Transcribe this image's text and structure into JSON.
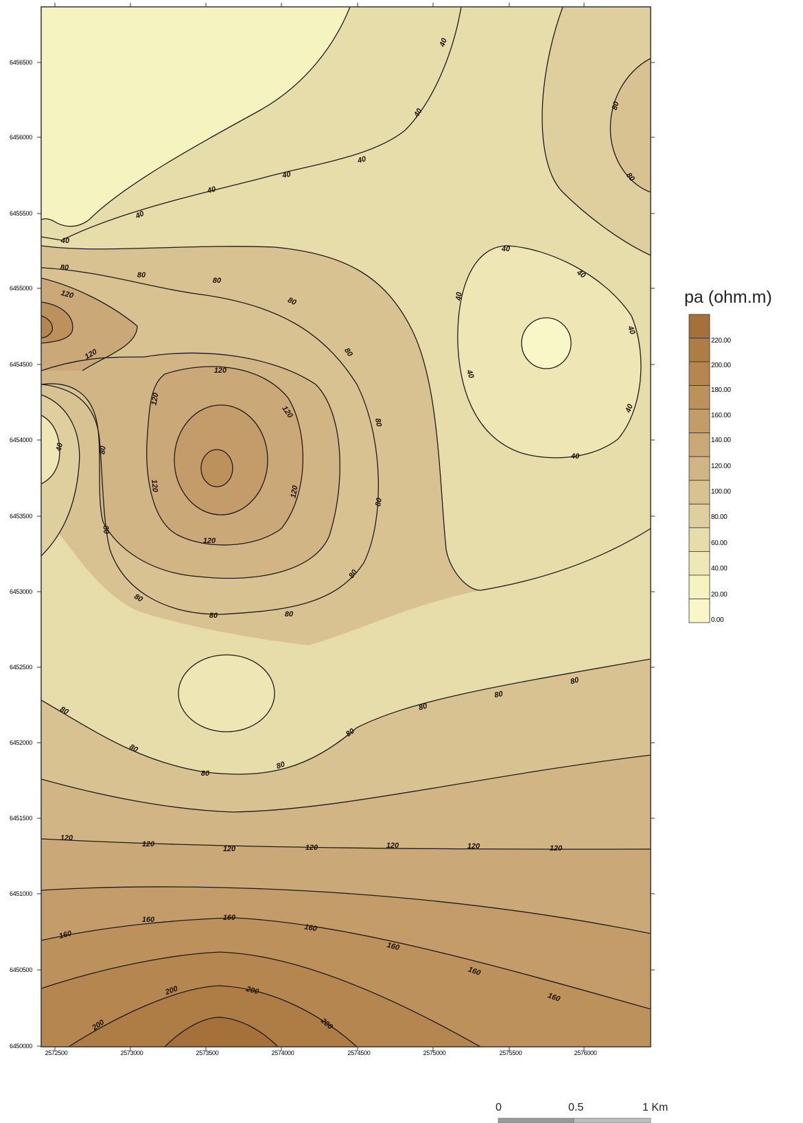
{
  "map": {
    "legend": {
      "title": "pa (ohm.m)",
      "levels": [
        "220.00",
        "200.00",
        "180.00",
        "160.00",
        "140.00",
        "120.00",
        "100.00",
        "80.00",
        "60.00",
        "40.00",
        "20.00",
        "0.00"
      ],
      "colors": [
        "#a5703a",
        "#ae7c45",
        "#b68651",
        "#bd915c",
        "#c49c6a",
        "#cba878",
        "#d2b585",
        "#d9c291",
        "#e0cf9e",
        "#e6ddaa",
        "#ede8b5",
        "#f5f3c0",
        "#f9f6c8"
      ]
    },
    "y_axis": {
      "tick_labels": [
        "6456500",
        "6456000",
        "6455500",
        "6455000",
        "6454500",
        "6454000",
        "6453500",
        "6453000",
        "6452500",
        "6452000",
        "6451500",
        "6451000",
        "6450500",
        "6450000"
      ]
    },
    "x_axis": {
      "tick_labels": [
        "2572500",
        "2573000",
        "2573500",
        "2574000",
        "2574500",
        "2575000",
        "2575500",
        "2576000"
      ]
    },
    "contour_labels": {
      "v40": "40",
      "v80": "80",
      "v120": "120",
      "v160": "160",
      "v200": "200"
    },
    "scale_bar": {
      "labels": [
        "0",
        "0.5",
        "1 Km"
      ]
    }
  }
}
